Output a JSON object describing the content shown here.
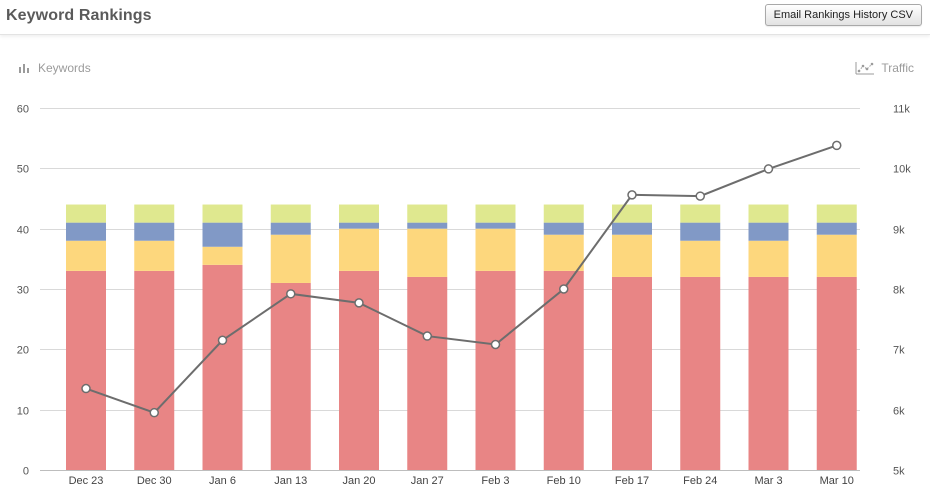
{
  "header": {
    "title": "Keyword Rankings",
    "email_button": "Email Rankings History CSV"
  },
  "legend": {
    "left_label": "Keywords",
    "left_icon": "bar-chart-icon",
    "right_label": "Traffic",
    "right_icon": "line-chart-icon"
  },
  "colors": {
    "red": "#e88585",
    "yellow": "#fdd77d",
    "blue": "#8199c6",
    "green": "#dfe88f",
    "line": "#6d6d6d",
    "grid": "#d9d9d9"
  },
  "chart_data": {
    "type": "bar",
    "categories": [
      "Dec 23",
      "Dec 30",
      "Jan 6",
      "Jan 13",
      "Jan 20",
      "Jan 27",
      "Feb 3",
      "Feb 10",
      "Feb 17",
      "Feb 24",
      "Mar 3",
      "Mar 10"
    ],
    "ylim": [
      0,
      60
    ],
    "yticks": [
      "0",
      "10",
      "20",
      "30",
      "40",
      "50",
      "60"
    ],
    "y2lim": [
      5000,
      11000
    ],
    "y2ticks": [
      "5k",
      "6k",
      "7k",
      "8k",
      "9k",
      "10k",
      "11k"
    ],
    "grid": true,
    "stacked": true,
    "series": [
      {
        "color": "#e88585",
        "values": [
          33,
          33,
          34,
          31,
          33,
          32,
          33,
          33,
          32,
          32,
          32,
          32
        ]
      },
      {
        "color": "#fdd77d",
        "values": [
          5,
          5,
          3,
          8,
          7,
          8,
          7,
          6,
          7,
          6,
          6,
          7
        ]
      },
      {
        "color": "#8199c6",
        "values": [
          3,
          3,
          4,
          2,
          1,
          1,
          1,
          2,
          2,
          3,
          3,
          2
        ]
      },
      {
        "color": "#dfe88f",
        "values": [
          3,
          3,
          3,
          3,
          3,
          3,
          3,
          3,
          3,
          3,
          3,
          3
        ]
      }
    ],
    "line": {
      "axis": "right",
      "values": [
        6350,
        5950,
        7150,
        7920,
        7770,
        7220,
        7080,
        8000,
        9560,
        9540,
        9990,
        10380
      ]
    }
  }
}
